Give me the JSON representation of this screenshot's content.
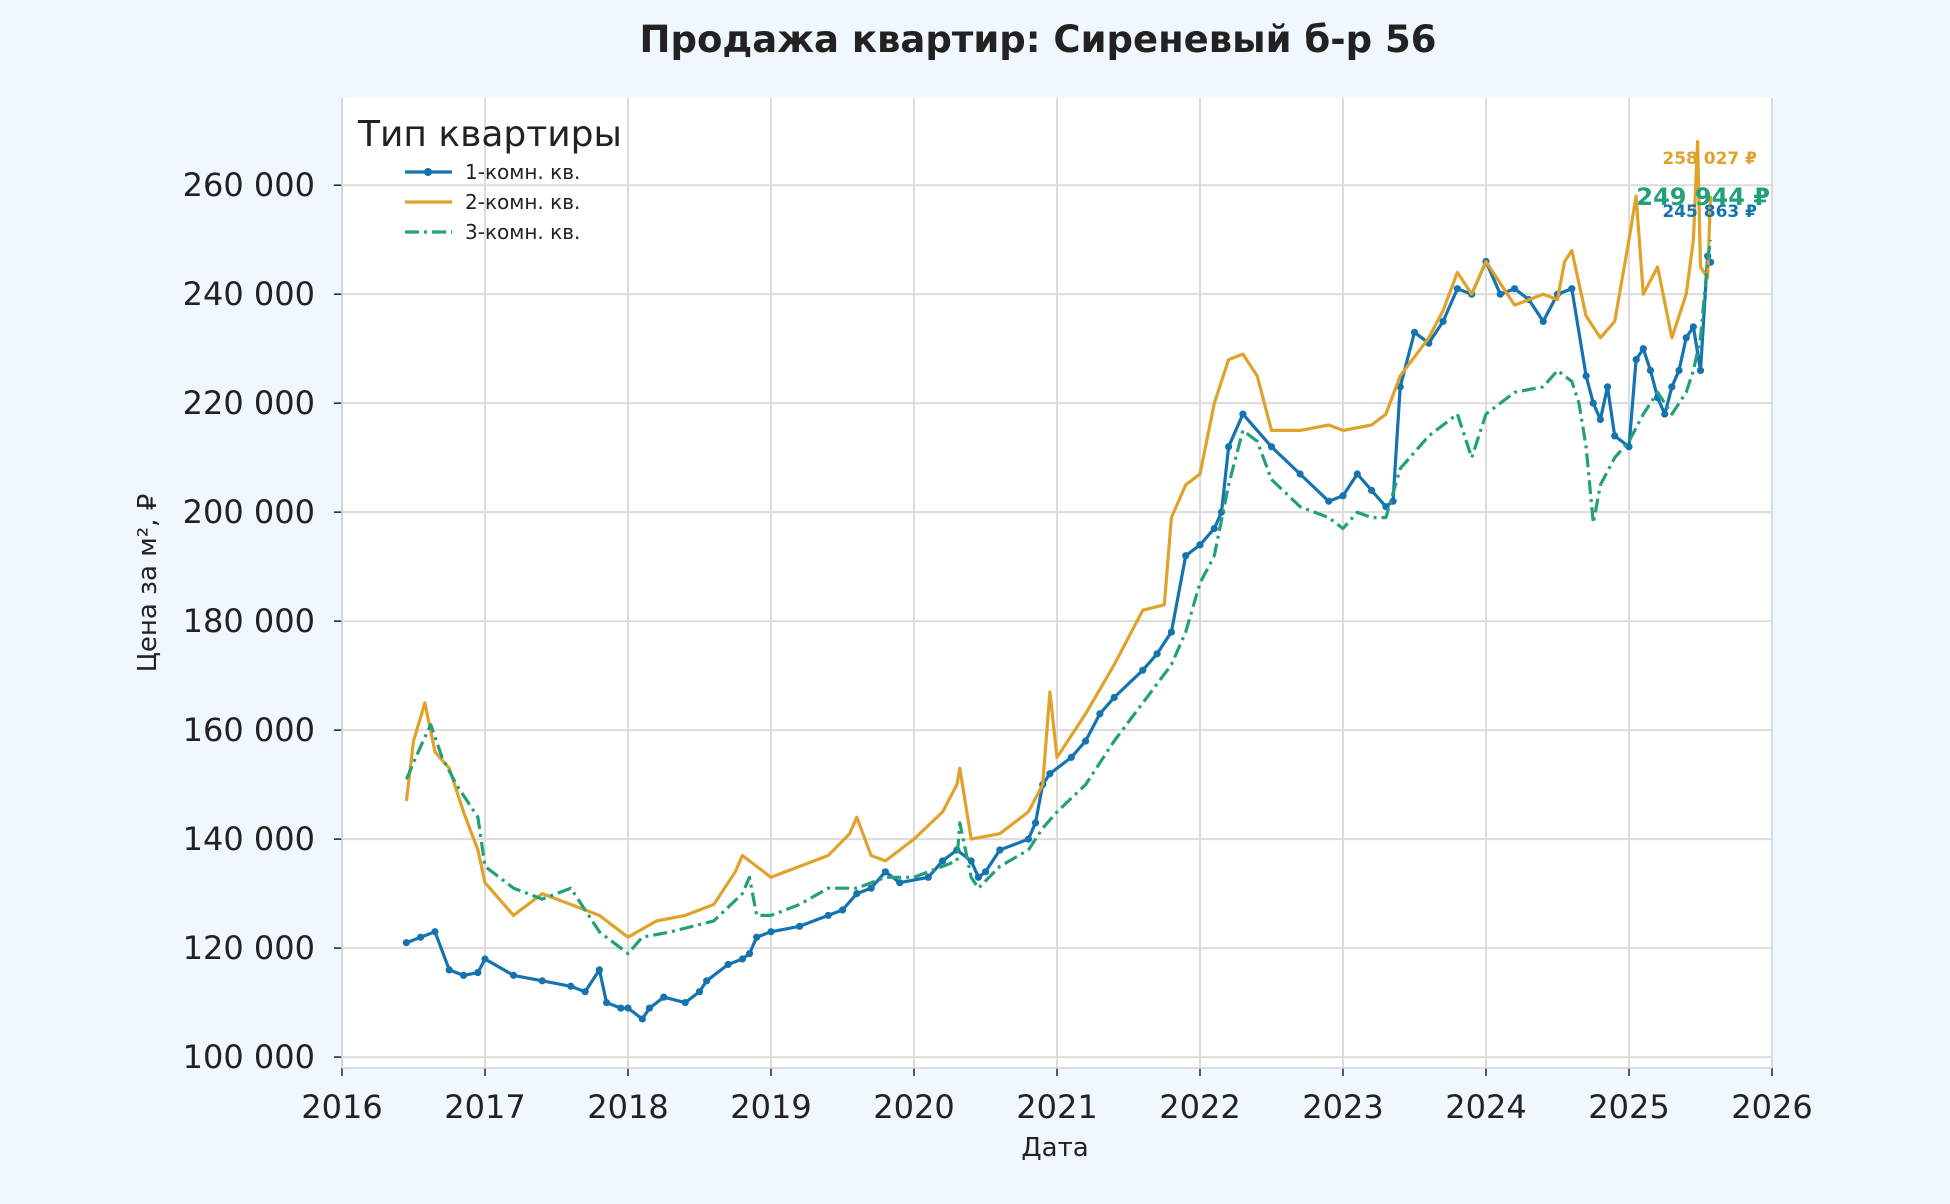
{
  "colors": {
    "background": "#f0f7fe",
    "plot_background": "#ffffff",
    "grid": "#dcdcdc",
    "text": "#222222"
  },
  "chart_data": {
    "type": "line",
    "title": "Продажа квартир: Сиреневый б-р 56",
    "xlabel": "Дата",
    "ylabel": "Цена за м², ₽",
    "xlim": [
      2016,
      2026
    ],
    "ylim": [
      98000,
      276000
    ],
    "x_ticks": [
      2016,
      2017,
      2018,
      2019,
      2020,
      2021,
      2022,
      2023,
      2024,
      2025,
      2026
    ],
    "x_tick_labels": [
      "2016",
      "2017",
      "2018",
      "2019",
      "2020",
      "2021",
      "2022",
      "2023",
      "2024",
      "2025",
      "2026"
    ],
    "y_ticks": [
      100000,
      120000,
      140000,
      160000,
      180000,
      200000,
      220000,
      240000,
      260000
    ],
    "y_tick_labels": [
      "100 000",
      "120 000",
      "140 000",
      "160 000",
      "180 000",
      "200 000",
      "220 000",
      "240 000",
      "260 000"
    ],
    "grid": true,
    "legend": {
      "title": "Тип квартиры",
      "position": "top-left"
    },
    "series": [
      {
        "name": "1-комн. кв.",
        "color": "#1573b0",
        "line_style": "solid-markers",
        "x": [
          2016.45,
          2016.55,
          2016.65,
          2016.75,
          2016.85,
          2016.95,
          2017.0,
          2017.2,
          2017.4,
          2017.6,
          2017.7,
          2017.8,
          2017.85,
          2017.95,
          2018.0,
          2018.1,
          2018.15,
          2018.25,
          2018.4,
          2018.5,
          2018.55,
          2018.7,
          2018.8,
          2018.85,
          2018.9,
          2019.0,
          2019.2,
          2019.4,
          2019.5,
          2019.6,
          2019.7,
          2019.8,
          2019.9,
          2020.1,
          2020.2,
          2020.3,
          2020.4,
          2020.45,
          2020.5,
          2020.6,
          2020.8,
          2020.85,
          2020.9,
          2020.95,
          2021.1,
          2021.2,
          2021.3,
          2021.4,
          2021.6,
          2021.7,
          2021.8,
          2021.9,
          2022.0,
          2022.1,
          2022.15,
          2022.2,
          2022.3,
          2022.5,
          2022.7,
          2022.9,
          2023.0,
          2023.1,
          2023.2,
          2023.3,
          2023.35,
          2023.4,
          2023.5,
          2023.6,
          2023.7,
          2023.8,
          2023.9,
          2024.0,
          2024.1,
          2024.2,
          2024.3,
          2024.4,
          2024.5,
          2024.6,
          2024.7,
          2024.75,
          2024.8,
          2024.85,
          2024.9,
          2025.0,
          2025.05,
          2025.1,
          2025.15,
          2025.2,
          2025.25,
          2025.3,
          2025.35,
          2025.4,
          2025.45,
          2025.5,
          2025.55,
          2025.57
        ],
        "y": [
          121000,
          122000,
          123000,
          116000,
          115000,
          115500,
          118000,
          115000,
          114000,
          113000,
          112000,
          116000,
          110000,
          109000,
          109000,
          107000,
          109000,
          111000,
          110000,
          112000,
          114000,
          117000,
          118000,
          119000,
          122000,
          123000,
          124000,
          126000,
          127000,
          130000,
          131000,
          134000,
          132000,
          133000,
          136000,
          138000,
          136000,
          133000,
          134000,
          138000,
          140000,
          143000,
          150000,
          152000,
          155000,
          158000,
          163000,
          166000,
          171000,
          174000,
          178000,
          192000,
          194000,
          197000,
          200000,
          212000,
          218000,
          212000,
          207000,
          202000,
          203000,
          207000,
          204000,
          201000,
          202000,
          223000,
          233000,
          231000,
          235000,
          241000,
          240000,
          246000,
          240000,
          241000,
          239000,
          235000,
          240000,
          241000,
          225000,
          220000,
          217000,
          223000,
          214000,
          212000,
          228000,
          230000,
          226000,
          221000,
          218000,
          223000,
          226000,
          232000,
          234000,
          226000,
          247000,
          245863
        ]
      },
      {
        "name": "2-комн. кв.",
        "color": "#e0a22b",
        "line_style": "solid",
        "x": [
          2016.45,
          2016.5,
          2016.58,
          2016.65,
          2016.75,
          2016.85,
          2016.95,
          2017.0,
          2017.2,
          2017.4,
          2017.6,
          2017.8,
          2017.9,
          2018.0,
          2018.2,
          2018.4,
          2018.6,
          2018.75,
          2018.8,
          2018.9,
          2019.0,
          2019.2,
          2019.4,
          2019.55,
          2019.6,
          2019.7,
          2019.8,
          2020.0,
          2020.2,
          2020.3,
          2020.32,
          2020.4,
          2020.6,
          2020.8,
          2020.9,
          2020.95,
          2021.0,
          2021.2,
          2021.4,
          2021.6,
          2021.75,
          2021.8,
          2021.9,
          2022.0,
          2022.1,
          2022.2,
          2022.3,
          2022.4,
          2022.5,
          2022.7,
          2022.9,
          2023.0,
          2023.2,
          2023.3,
          2023.4,
          2023.6,
          2023.7,
          2023.8,
          2023.9,
          2024.0,
          2024.2,
          2024.4,
          2024.5,
          2024.55,
          2024.6,
          2024.7,
          2024.8,
          2024.9,
          2025.0,
          2025.05,
          2025.1,
          2025.2,
          2025.3,
          2025.4,
          2025.45,
          2025.48,
          2025.5,
          2025.55,
          2025.57
        ],
        "y": [
          147000,
          158000,
          165000,
          156000,
          153000,
          145000,
          138000,
          132000,
          126000,
          130000,
          128000,
          126000,
          124000,
          122000,
          125000,
          126000,
          128000,
          134000,
          137000,
          135000,
          133000,
          135000,
          137000,
          141000,
          144000,
          137000,
          136000,
          140000,
          145000,
          150000,
          153000,
          140000,
          141000,
          145000,
          150000,
          167000,
          155000,
          163000,
          172000,
          182000,
          183000,
          199000,
          205000,
          207000,
          220000,
          228000,
          229000,
          225000,
          215000,
          215000,
          216000,
          215000,
          216000,
          218000,
          225000,
          232000,
          237000,
          244000,
          240000,
          246000,
          238000,
          240000,
          239000,
          246000,
          248000,
          236000,
          232000,
          235000,
          250000,
          258000,
          240000,
          245000,
          232000,
          240000,
          250000,
          268000,
          245000,
          243000,
          258027
        ]
      },
      {
        "name": "3-комн. кв.",
        "color": "#22a07a",
        "line_style": "dash-dot",
        "x": [
          2016.45,
          2016.55,
          2016.62,
          2016.7,
          2016.8,
          2016.9,
          2016.95,
          2017.0,
          2017.2,
          2017.4,
          2017.6,
          2017.7,
          2017.8,
          2017.9,
          2018.0,
          2018.1,
          2018.3,
          2018.6,
          2018.8,
          2018.85,
          2018.9,
          2019.0,
          2019.2,
          2019.4,
          2019.6,
          2019.8,
          2020.0,
          2020.2,
          2020.3,
          2020.32,
          2020.4,
          2020.45,
          2020.6,
          2020.8,
          2020.9,
          2021.0,
          2021.2,
          2021.4,
          2021.6,
          2021.8,
          2021.9,
          2022.0,
          2022.1,
          2022.2,
          2022.3,
          2022.4,
          2022.5,
          2022.7,
          2022.9,
          2023.0,
          2023.1,
          2023.2,
          2023.3,
          2023.4,
          2023.6,
          2023.7,
          2023.8,
          2023.9,
          2024.0,
          2024.2,
          2024.4,
          2024.5,
          2024.6,
          2024.65,
          2024.7,
          2024.75,
          2024.8,
          2024.9,
          2025.0,
          2025.1,
          2025.2,
          2025.3,
          2025.4,
          2025.45,
          2025.5,
          2025.55,
          2025.57
        ],
        "y": [
          151000,
          157000,
          161000,
          155000,
          150000,
          146000,
          144000,
          135000,
          131000,
          129000,
          131000,
          127000,
          123000,
          121000,
          119000,
          122000,
          123000,
          125000,
          130000,
          133000,
          126000,
          126000,
          128000,
          131000,
          131000,
          133000,
          133000,
          135000,
          136000,
          143000,
          133000,
          131000,
          135000,
          138000,
          142000,
          145000,
          150000,
          158000,
          165000,
          172000,
          178000,
          187000,
          192000,
          205000,
          215000,
          213000,
          206000,
          201000,
          199000,
          197000,
          200000,
          199000,
          199000,
          208000,
          214000,
          216000,
          218000,
          210000,
          218000,
          222000,
          223000,
          226000,
          224000,
          220000,
          212000,
          198000,
          205000,
          210000,
          213000,
          218000,
          222000,
          218000,
          222000,
          226000,
          232000,
          246000,
          249944
        ]
      }
    ],
    "annotations": [
      {
        "text": "258 027 ₽",
        "series": 1,
        "y": 265000,
        "size": "small"
      },
      {
        "text": "249 944 ₽",
        "series": 2,
        "y": 257800,
        "size": "large"
      },
      {
        "text": "245 863 ₽",
        "series": 0,
        "y": 255300,
        "size": "small"
      }
    ]
  }
}
